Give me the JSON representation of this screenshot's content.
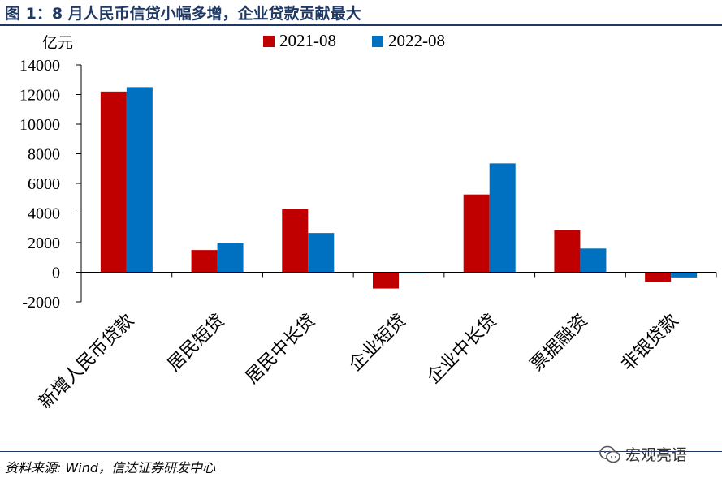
{
  "figure": {
    "title": "图 1：8 月人民币信贷小幅多增，企业贷款贡献最大",
    "unit": "亿元",
    "source": "资料来源: Wind，信达证券研发中心",
    "watermark": "宏观亮语"
  },
  "chart_data": {
    "type": "bar",
    "categories": [
      "新增人民币贷款",
      "居民短贷",
      "居民中长贷",
      "企业短贷",
      "企业中长贷",
      "票据融资",
      "非银贷款"
    ],
    "series": [
      {
        "name": "2021-08",
        "color": "#c00000",
        "values": [
          12200,
          1500,
          4250,
          -1100,
          5250,
          2850,
          -650
        ]
      },
      {
        "name": "2022-08",
        "color": "#0070c0",
        "values": [
          12500,
          1950,
          2650,
          -50,
          7350,
          1600,
          -350
        ]
      }
    ],
    "yticks": [
      "14000",
      "12000",
      "10000",
      "8000",
      "6000",
      "4000",
      "2000",
      "0",
      "-2000"
    ],
    "ylim": [
      -2000,
      14000
    ],
    "legend_position": "top",
    "grid": false
  }
}
